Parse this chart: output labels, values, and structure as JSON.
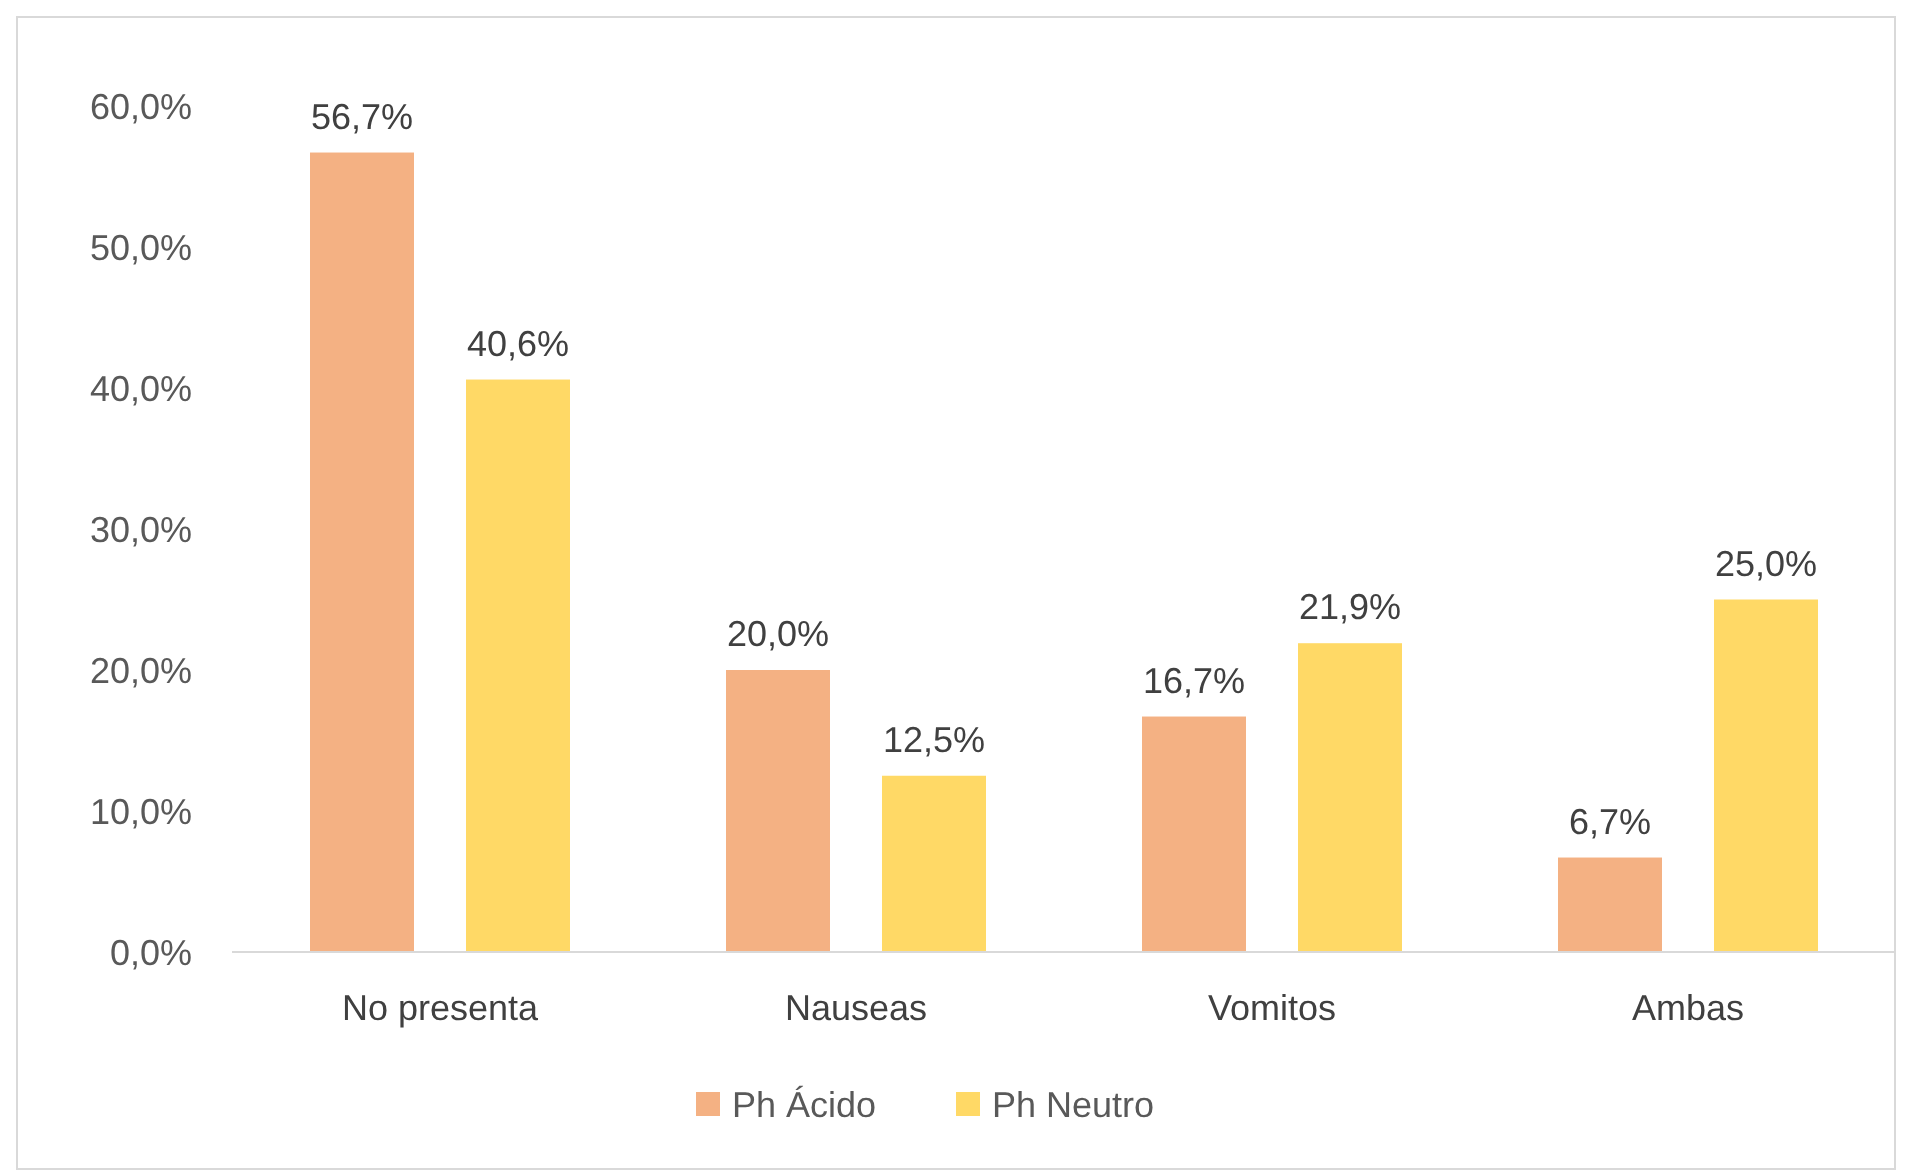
{
  "chart_data": {
    "type": "bar",
    "categories": [
      "No presenta",
      "Nauseas",
      "Vomitos",
      "Ambas"
    ],
    "series": [
      {
        "name": "Ph Ácido",
        "color": "#f4b183",
        "values": [
          56.7,
          20.0,
          16.7,
          6.7
        ],
        "value_labels": [
          "56,7%",
          "20,0%",
          "16,7%",
          "6,7%"
        ]
      },
      {
        "name": "Ph Neutro",
        "color": "#ffd966",
        "values": [
          40.6,
          12.5,
          21.9,
          25.0
        ],
        "value_labels": [
          "40,6%",
          "12,5%",
          "21,9%",
          "25,0%"
        ]
      }
    ],
    "ylim": [
      0,
      60
    ],
    "yticks": [
      {
        "value": 0,
        "label": "0,0%"
      },
      {
        "value": 10,
        "label": "10,0%"
      },
      {
        "value": 20,
        "label": "20,0%"
      },
      {
        "value": 30,
        "label": "30,0%"
      },
      {
        "value": 40,
        "label": "40,0%"
      },
      {
        "value": 50,
        "label": "50,0%"
      },
      {
        "value": 60,
        "label": "60,0%"
      }
    ],
    "grid": false,
    "legend": "bottom"
  }
}
